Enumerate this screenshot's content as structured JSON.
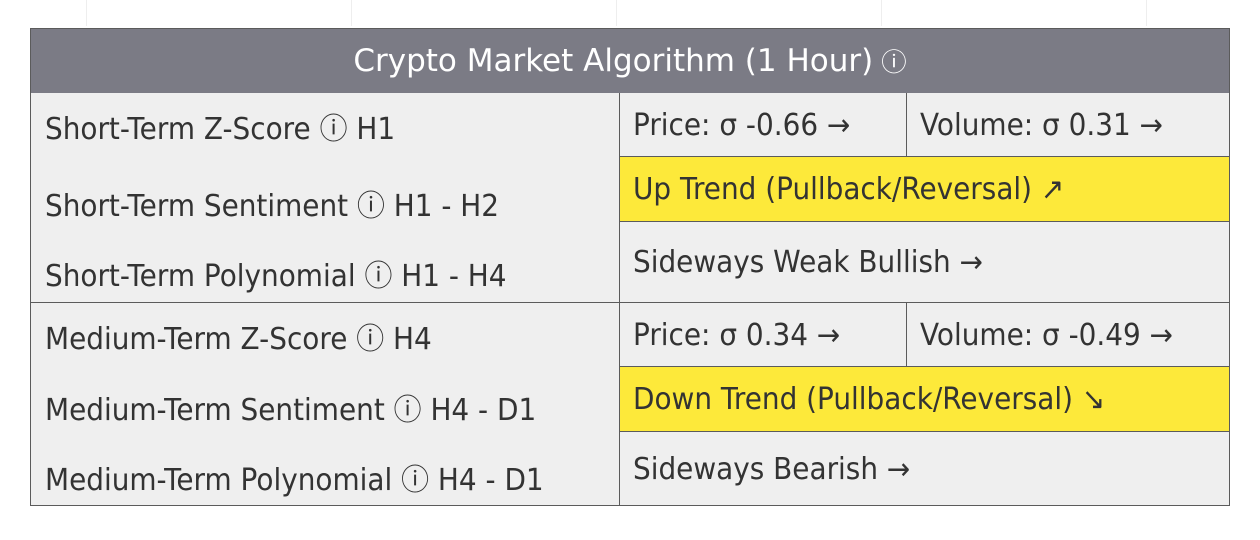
{
  "header": {
    "title": "Crypto Market Algorithm (1 Hour)",
    "info_icon": "ⓘ"
  },
  "sections": [
    {
      "name": "short",
      "rows": [
        {
          "label": "Short-Term Z-Score",
          "timeframe": "H1"
        },
        {
          "label": "Short-Term Sentiment",
          "timeframe": "H1 - H2"
        },
        {
          "label": "Short-Term Polynomial",
          "timeframe": "H1 - H4"
        }
      ],
      "zscore": {
        "price": "Price: σ -0.66 →",
        "volume": "Volume: σ 0.31 →"
      },
      "sentiment": "Up Trend (Pullback/Reversal) ↗",
      "polynomial": "Sideways Weak Bullish →"
    },
    {
      "name": "medium",
      "rows": [
        {
          "label": "Medium-Term Z-Score",
          "timeframe": "H4"
        },
        {
          "label": "Medium-Term Sentiment",
          "timeframe": "H4 - D1"
        },
        {
          "label": "Medium-Term Polynomial",
          "timeframe": "H4 - D1"
        }
      ],
      "zscore": {
        "price": "Price: σ 0.34 →",
        "volume": "Volume: σ -0.49 →"
      },
      "sentiment": "Down Trend (Pullback/Reversal) ↘",
      "polynomial": "Sideways Bearish →"
    }
  ],
  "colors": {
    "header_bg": "#7b7b85",
    "body_bg": "#efefef",
    "highlight": "#fde93a",
    "border": "#5b5b5b"
  }
}
